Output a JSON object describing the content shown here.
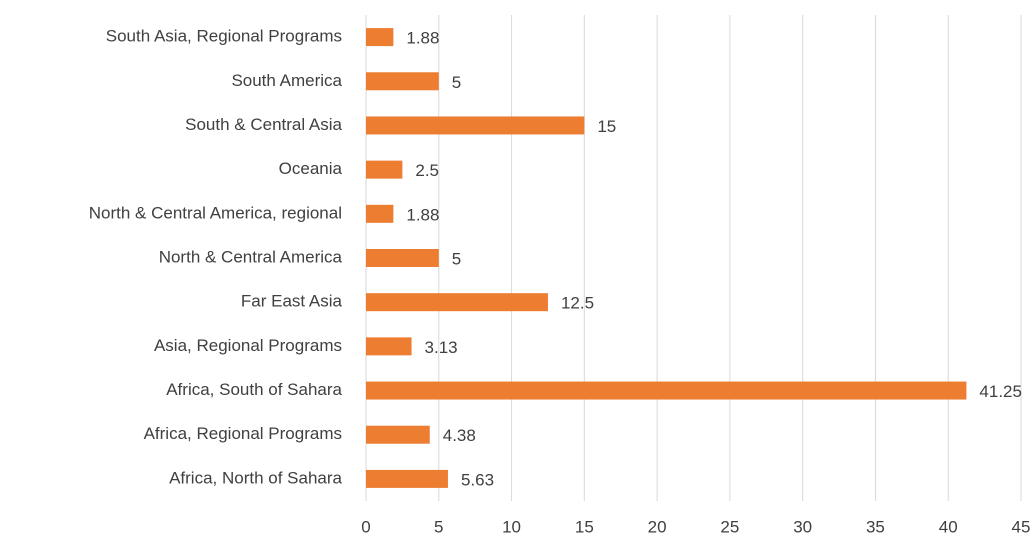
{
  "chart_data": {
    "type": "bar",
    "orientation": "horizontal",
    "categories": [
      "South Asia, Regional Programs",
      "South America",
      "South & Central Asia",
      "Oceania",
      "North & Central America, regional",
      "North & Central America",
      "Far East Asia",
      "Asia, Regional Programs",
      "Africa, South of Sahara",
      "Africa, Regional Programs",
      "Africa, North of Sahara"
    ],
    "values": [
      1.88,
      5,
      15,
      2.5,
      1.88,
      5,
      12.5,
      3.13,
      41.25,
      4.38,
      5.63
    ],
    "color": "#ed7d31",
    "xlim": [
      0,
      45
    ],
    "xticks": [
      0,
      5,
      10,
      15,
      20,
      25,
      30,
      35,
      40,
      45
    ],
    "grid": true
  }
}
